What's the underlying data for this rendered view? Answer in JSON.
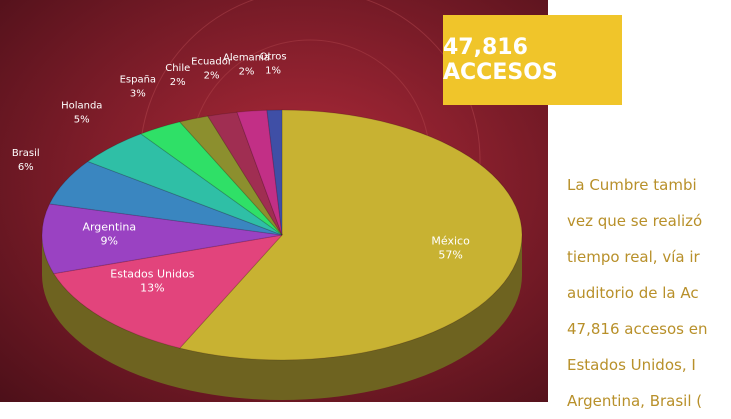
{
  "chart_data": {
    "type": "pie",
    "categories": [
      "México",
      "Estados Unidos",
      "Argentina",
      "Brasil",
      "Holanda",
      "España",
      "Chile",
      "Ecuador",
      "Alemania",
      "Otros"
    ],
    "values": [
      57,
      13,
      9,
      6,
      5,
      3,
      2,
      2,
      2,
      1
    ],
    "value_labels": [
      "57%",
      "13%",
      "9%",
      "6%",
      "5%",
      "3%",
      "2%",
      "2%",
      "2%",
      "1%"
    ],
    "colors": [
      "#c8b232",
      "#e2447c",
      "#9a42c2",
      "#3a86c0",
      "#2fbfa6",
      "#2fe067",
      "#8c8f2e",
      "#a02e52",
      "#c22f86",
      "#3f4fa6"
    ]
  },
  "banner": {
    "title": "47,816 ACCESOS"
  },
  "paragraph": {
    "lines": [
      "La Cumbre tambi",
      "vez que se realizó",
      "tiempo real, vía ir",
      "auditorio de la Ac",
      "47,816 accesos en",
      "Estados Unidos, I",
      "Argentina, Brasil ("
    ]
  }
}
